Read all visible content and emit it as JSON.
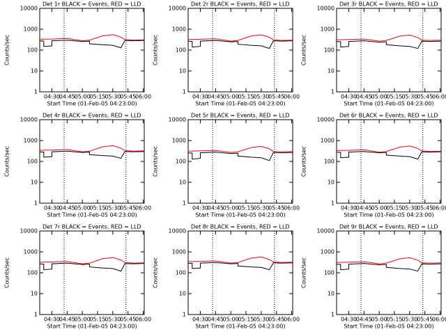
{
  "chart_data": [
    {
      "type": "line",
      "title": "Det 1r BLACK = Events, RED = LLD",
      "xlabel": "Start Time (01-Feb-05 04:23:00)",
      "ylabel": "Counts/sec",
      "ylog": true,
      "ylim": [
        1,
        10000
      ],
      "yticks": [
        1,
        10,
        100,
        1000,
        10000
      ],
      "xlim": [
        "04:18",
        "06:01"
      ],
      "xticks": [
        "04:30",
        "04:45",
        "05:00",
        "05:15",
        "05:30",
        "05:45",
        "06:00"
      ],
      "vlines": [
        "04:42",
        "05:43"
      ],
      "x": [
        "04:18",
        "04:22",
        "04:22",
        "04:30",
        "04:30",
        "04:45",
        "05:00",
        "05:07",
        "05:07",
        "05:20",
        "05:30",
        "05:38",
        "05:42",
        "05:50",
        "06:01"
      ],
      "series": [
        {
          "name": "Events",
          "color": "#000000",
          "values": [
            280,
            270,
            150,
            160,
            280,
            300,
            260,
            270,
            200,
            180,
            170,
            130,
            290,
            280,
            290
          ]
        },
        {
          "name": "LLD",
          "color": "#ff0000",
          "values": [
            330,
            335,
            335,
            340,
            340,
            360,
            280,
            300,
            300,
            480,
            550,
            420,
            320,
            300,
            310
          ]
        }
      ]
    },
    {
      "type": "line",
      "title": "Det 2r BLACK = Events, RED = LLD",
      "xlabel": "Start Time (01-Feb-05 04:23:00)",
      "ylabel": "Counts/sec",
      "ylog": true,
      "ylim": [
        1,
        10000
      ],
      "yticks": [
        1,
        10,
        100,
        1000,
        10000
      ],
      "xlim": [
        "04:18",
        "06:01"
      ],
      "xticks": [
        "04:30",
        "04:45",
        "05:00",
        "05:15",
        "05:30",
        "05:45",
        "06:00"
      ],
      "vlines": [
        "04:42",
        "05:43"
      ],
      "x": [
        "04:18",
        "04:22",
        "04:22",
        "04:30",
        "04:30",
        "04:45",
        "05:00",
        "05:07",
        "05:07",
        "05:20",
        "05:30",
        "05:38",
        "05:42",
        "05:50",
        "06:01"
      ],
      "series": [
        {
          "name": "Events",
          "color": "#000000",
          "values": [
            270,
            260,
            140,
            150,
            270,
            290,
            250,
            260,
            190,
            170,
            160,
            120,
            280,
            270,
            280
          ]
        },
        {
          "name": "LLD",
          "color": "#ff0000",
          "values": [
            320,
            325,
            325,
            330,
            330,
            350,
            270,
            290,
            290,
            470,
            540,
            410,
            310,
            290,
            300
          ]
        }
      ]
    },
    {
      "type": "line",
      "title": "Det 3r BLACK = Events, RED = LLD",
      "xlabel": "Start Time (01-Feb-05 04:23:00)",
      "ylabel": "Counts/sec",
      "ylog": true,
      "ylim": [
        1,
        10000
      ],
      "yticks": [
        1,
        10,
        100,
        1000,
        10000
      ],
      "xlim": [
        "04:18",
        "06:01"
      ],
      "xticks": [
        "04:30",
        "04:45",
        "05:00",
        "05:15",
        "05:30",
        "05:45",
        "06:00"
      ],
      "vlines": [
        "04:42",
        "05:43"
      ],
      "x": [
        "04:18",
        "04:22",
        "04:22",
        "04:30",
        "04:30",
        "04:45",
        "05:00",
        "05:07",
        "05:07",
        "05:20",
        "05:30",
        "05:38",
        "05:42",
        "05:50",
        "06:01"
      ],
      "series": [
        {
          "name": "Events",
          "color": "#000000",
          "values": [
            260,
            250,
            140,
            150,
            260,
            280,
            240,
            250,
            180,
            160,
            150,
            120,
            270,
            260,
            270
          ]
        },
        {
          "name": "LLD",
          "color": "#ff0000",
          "values": [
            310,
            315,
            315,
            320,
            320,
            340,
            270,
            290,
            290,
            460,
            530,
            400,
            300,
            290,
            300
          ]
        }
      ]
    },
    {
      "type": "line",
      "title": "Det 4r BLACK = Events, RED = LLD",
      "xlabel": "Start Time (01-Feb-05 04:23:00)",
      "ylabel": "Counts/sec",
      "ylog": true,
      "ylim": [
        1,
        10000
      ],
      "yticks": [
        1,
        10,
        100,
        1000,
        10000
      ],
      "xlim": [
        "04:18",
        "06:01"
      ],
      "xticks": [
        "04:30",
        "04:45",
        "05:00",
        "05:15",
        "05:30",
        "05:45",
        "06:00"
      ],
      "vlines": [
        "04:42",
        "05:43"
      ],
      "x": [
        "04:18",
        "04:22",
        "04:22",
        "04:30",
        "04:30",
        "04:45",
        "05:00",
        "05:07",
        "05:07",
        "05:20",
        "05:30",
        "05:38",
        "05:42",
        "05:50",
        "06:01"
      ],
      "series": [
        {
          "name": "Events",
          "color": "#000000",
          "values": [
            290,
            280,
            160,
            170,
            290,
            310,
            270,
            280,
            210,
            190,
            180,
            140,
            300,
            290,
            300
          ]
        },
        {
          "name": "LLD",
          "color": "#ff0000",
          "values": [
            340,
            345,
            345,
            350,
            350,
            370,
            290,
            310,
            310,
            500,
            570,
            430,
            330,
            310,
            320
          ]
        }
      ]
    },
    {
      "type": "line",
      "title": "Det 5r BLACK = Events, RED = LLD",
      "xlabel": "Start Time (01-Feb-05 04:23:00)",
      "ylabel": "Counts/sec",
      "ylog": true,
      "ylim": [
        1,
        10000
      ],
      "yticks": [
        1,
        10,
        100,
        1000,
        10000
      ],
      "xlim": [
        "04:18",
        "06:01"
      ],
      "xticks": [
        "04:30",
        "04:45",
        "05:00",
        "05:15",
        "05:30",
        "05:45",
        "06:00"
      ],
      "vlines": [
        "04:42",
        "05:43"
      ],
      "x": [
        "04:18",
        "04:22",
        "04:22",
        "04:30",
        "04:30",
        "04:45",
        "05:00",
        "05:07",
        "05:07",
        "05:20",
        "05:30",
        "05:38",
        "05:42",
        "05:50",
        "06:01"
      ],
      "series": [
        {
          "name": "Events",
          "color": "#000000",
          "values": [
            260,
            250,
            130,
            140,
            260,
            280,
            240,
            250,
            180,
            160,
            150,
            110,
            270,
            260,
            270
          ]
        },
        {
          "name": "LLD",
          "color": "#ff0000",
          "values": [
            310,
            315,
            315,
            320,
            320,
            340,
            270,
            290,
            290,
            460,
            530,
            400,
            300,
            290,
            300
          ]
        }
      ]
    },
    {
      "type": "line",
      "title": "Det 6r BLACK = Events, RED = LLD",
      "xlabel": "Start Time (01-Feb-05 04:23:00)",
      "ylabel": "Counts/sec",
      "ylog": true,
      "ylim": [
        1,
        10000
      ],
      "yticks": [
        1,
        10,
        100,
        1000,
        10000
      ],
      "xlim": [
        "04:18",
        "06:01"
      ],
      "xticks": [
        "04:30",
        "04:45",
        "05:00",
        "05:15",
        "05:30",
        "05:45",
        "06:00"
      ],
      "vlines": [
        "04:42",
        "05:43"
      ],
      "x": [
        "04:18",
        "04:22",
        "04:22",
        "04:30",
        "04:30",
        "04:45",
        "05:00",
        "05:07",
        "05:07",
        "05:20",
        "05:30",
        "05:38",
        "05:42",
        "05:50",
        "06:01"
      ],
      "series": [
        {
          "name": "Events",
          "color": "#000000",
          "values": [
            280,
            270,
            150,
            160,
            280,
            300,
            260,
            270,
            200,
            180,
            170,
            130,
            290,
            280,
            290
          ]
        },
        {
          "name": "LLD",
          "color": "#ff0000",
          "values": [
            330,
            335,
            335,
            340,
            340,
            360,
            280,
            300,
            300,
            480,
            550,
            420,
            320,
            300,
            310
          ]
        }
      ]
    },
    {
      "type": "line",
      "title": "Det 7r BLACK = Events, RED = LLD",
      "xlabel": "Start Time (01-Feb-05 04:23:00)",
      "ylabel": "Counts/sec",
      "ylog": true,
      "ylim": [
        1,
        10000
      ],
      "yticks": [
        1,
        10,
        100,
        1000,
        10000
      ],
      "xlim": [
        "04:18",
        "06:01"
      ],
      "xticks": [
        "04:30",
        "04:45",
        "05:00",
        "05:15",
        "05:30",
        "05:45",
        "06:00"
      ],
      "vlines": [
        "04:42",
        "05:43"
      ],
      "x": [
        "04:18",
        "04:22",
        "04:22",
        "04:30",
        "04:30",
        "04:45",
        "05:00",
        "05:07",
        "05:07",
        "05:20",
        "05:30",
        "05:38",
        "05:42",
        "05:50",
        "06:01"
      ],
      "series": [
        {
          "name": "Events",
          "color": "#000000",
          "values": [
            270,
            260,
            140,
            150,
            270,
            290,
            250,
            260,
            190,
            170,
            160,
            120,
            280,
            270,
            280
          ]
        },
        {
          "name": "LLD",
          "color": "#ff0000",
          "values": [
            320,
            325,
            325,
            330,
            330,
            350,
            270,
            290,
            290,
            470,
            540,
            410,
            310,
            290,
            300
          ]
        }
      ]
    },
    {
      "type": "line",
      "title": "Det 8r BLACK = Events, RED = LLD",
      "xlabel": "Start Time (01-Feb-05 04:23:00)",
      "ylabel": "Counts/sec",
      "ylog": true,
      "ylim": [
        1,
        10000
      ],
      "yticks": [
        1,
        10,
        100,
        1000,
        10000
      ],
      "xlim": [
        "04:18",
        "06:01"
      ],
      "xticks": [
        "04:30",
        "04:45",
        "05:00",
        "05:15",
        "05:30",
        "05:45",
        "06:00"
      ],
      "vlines": [
        "04:42",
        "05:43"
      ],
      "x": [
        "04:18",
        "04:22",
        "04:22",
        "04:30",
        "04:30",
        "04:45",
        "05:00",
        "05:07",
        "05:07",
        "05:20",
        "05:30",
        "05:38",
        "05:42",
        "05:50",
        "06:01"
      ],
      "series": [
        {
          "name": "Events",
          "color": "#000000",
          "values": [
            290,
            280,
            160,
            170,
            290,
            310,
            270,
            280,
            210,
            190,
            180,
            140,
            300,
            290,
            300
          ]
        },
        {
          "name": "LLD",
          "color": "#ff0000",
          "values": [
            340,
            345,
            345,
            350,
            350,
            370,
            290,
            310,
            310,
            500,
            570,
            430,
            330,
            310,
            320
          ]
        }
      ]
    },
    {
      "type": "line",
      "title": "Det 9r BLACK = Events, RED = LLD",
      "xlabel": "Start Time (01-Feb-05 04:23:00)",
      "ylabel": "Counts/sec",
      "ylog": true,
      "ylim": [
        1,
        10000
      ],
      "yticks": [
        1,
        10,
        100,
        1000,
        10000
      ],
      "xlim": [
        "04:18",
        "06:01"
      ],
      "xticks": [
        "04:30",
        "04:45",
        "05:00",
        "05:15",
        "05:30",
        "05:45",
        "06:00"
      ],
      "vlines": [
        "04:42",
        "05:43"
      ],
      "x": [
        "04:18",
        "04:22",
        "04:22",
        "04:30",
        "04:30",
        "04:45",
        "05:00",
        "05:07",
        "05:07",
        "05:20",
        "05:30",
        "05:38",
        "05:42",
        "05:50",
        "06:01"
      ],
      "series": [
        {
          "name": "Events",
          "color": "#000000",
          "values": [
            260,
            250,
            140,
            150,
            260,
            280,
            240,
            250,
            180,
            160,
            150,
            120,
            270,
            260,
            270
          ]
        },
        {
          "name": "LLD",
          "color": "#ff0000",
          "values": [
            310,
            315,
            315,
            320,
            320,
            340,
            270,
            290,
            290,
            460,
            530,
            400,
            300,
            290,
            300
          ]
        }
      ]
    }
  ]
}
